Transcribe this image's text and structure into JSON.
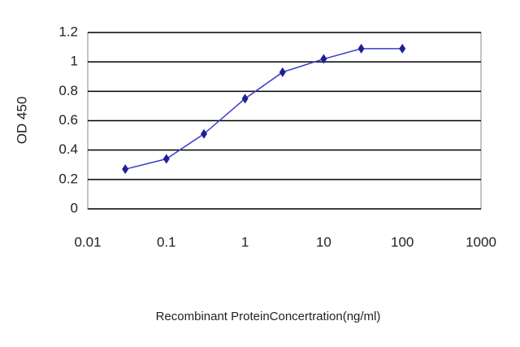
{
  "chart_data": {
    "type": "line",
    "x_label": "Recombinant ProteinConcertration(ng/ml)",
    "y_label": "OD 450",
    "x": [
      0.03,
      0.1,
      0.3,
      1,
      3,
      10,
      30,
      100
    ],
    "series": [
      {
        "color": "#1f1f99",
        "values": [
          0.27,
          0.34,
          0.51,
          0.75,
          0.93,
          1.02,
          1.09,
          1.09
        ]
      }
    ],
    "xlim": [
      0.01,
      1000
    ],
    "xticks": [
      0.01,
      0.1,
      1,
      10,
      100,
      1000
    ],
    "x_log": true,
    "ylim": [
      0,
      1.2
    ],
    "yticks": [
      0,
      0.2,
      0.4,
      0.6,
      0.8,
      1,
      1.2
    ],
    "grid": true
  }
}
